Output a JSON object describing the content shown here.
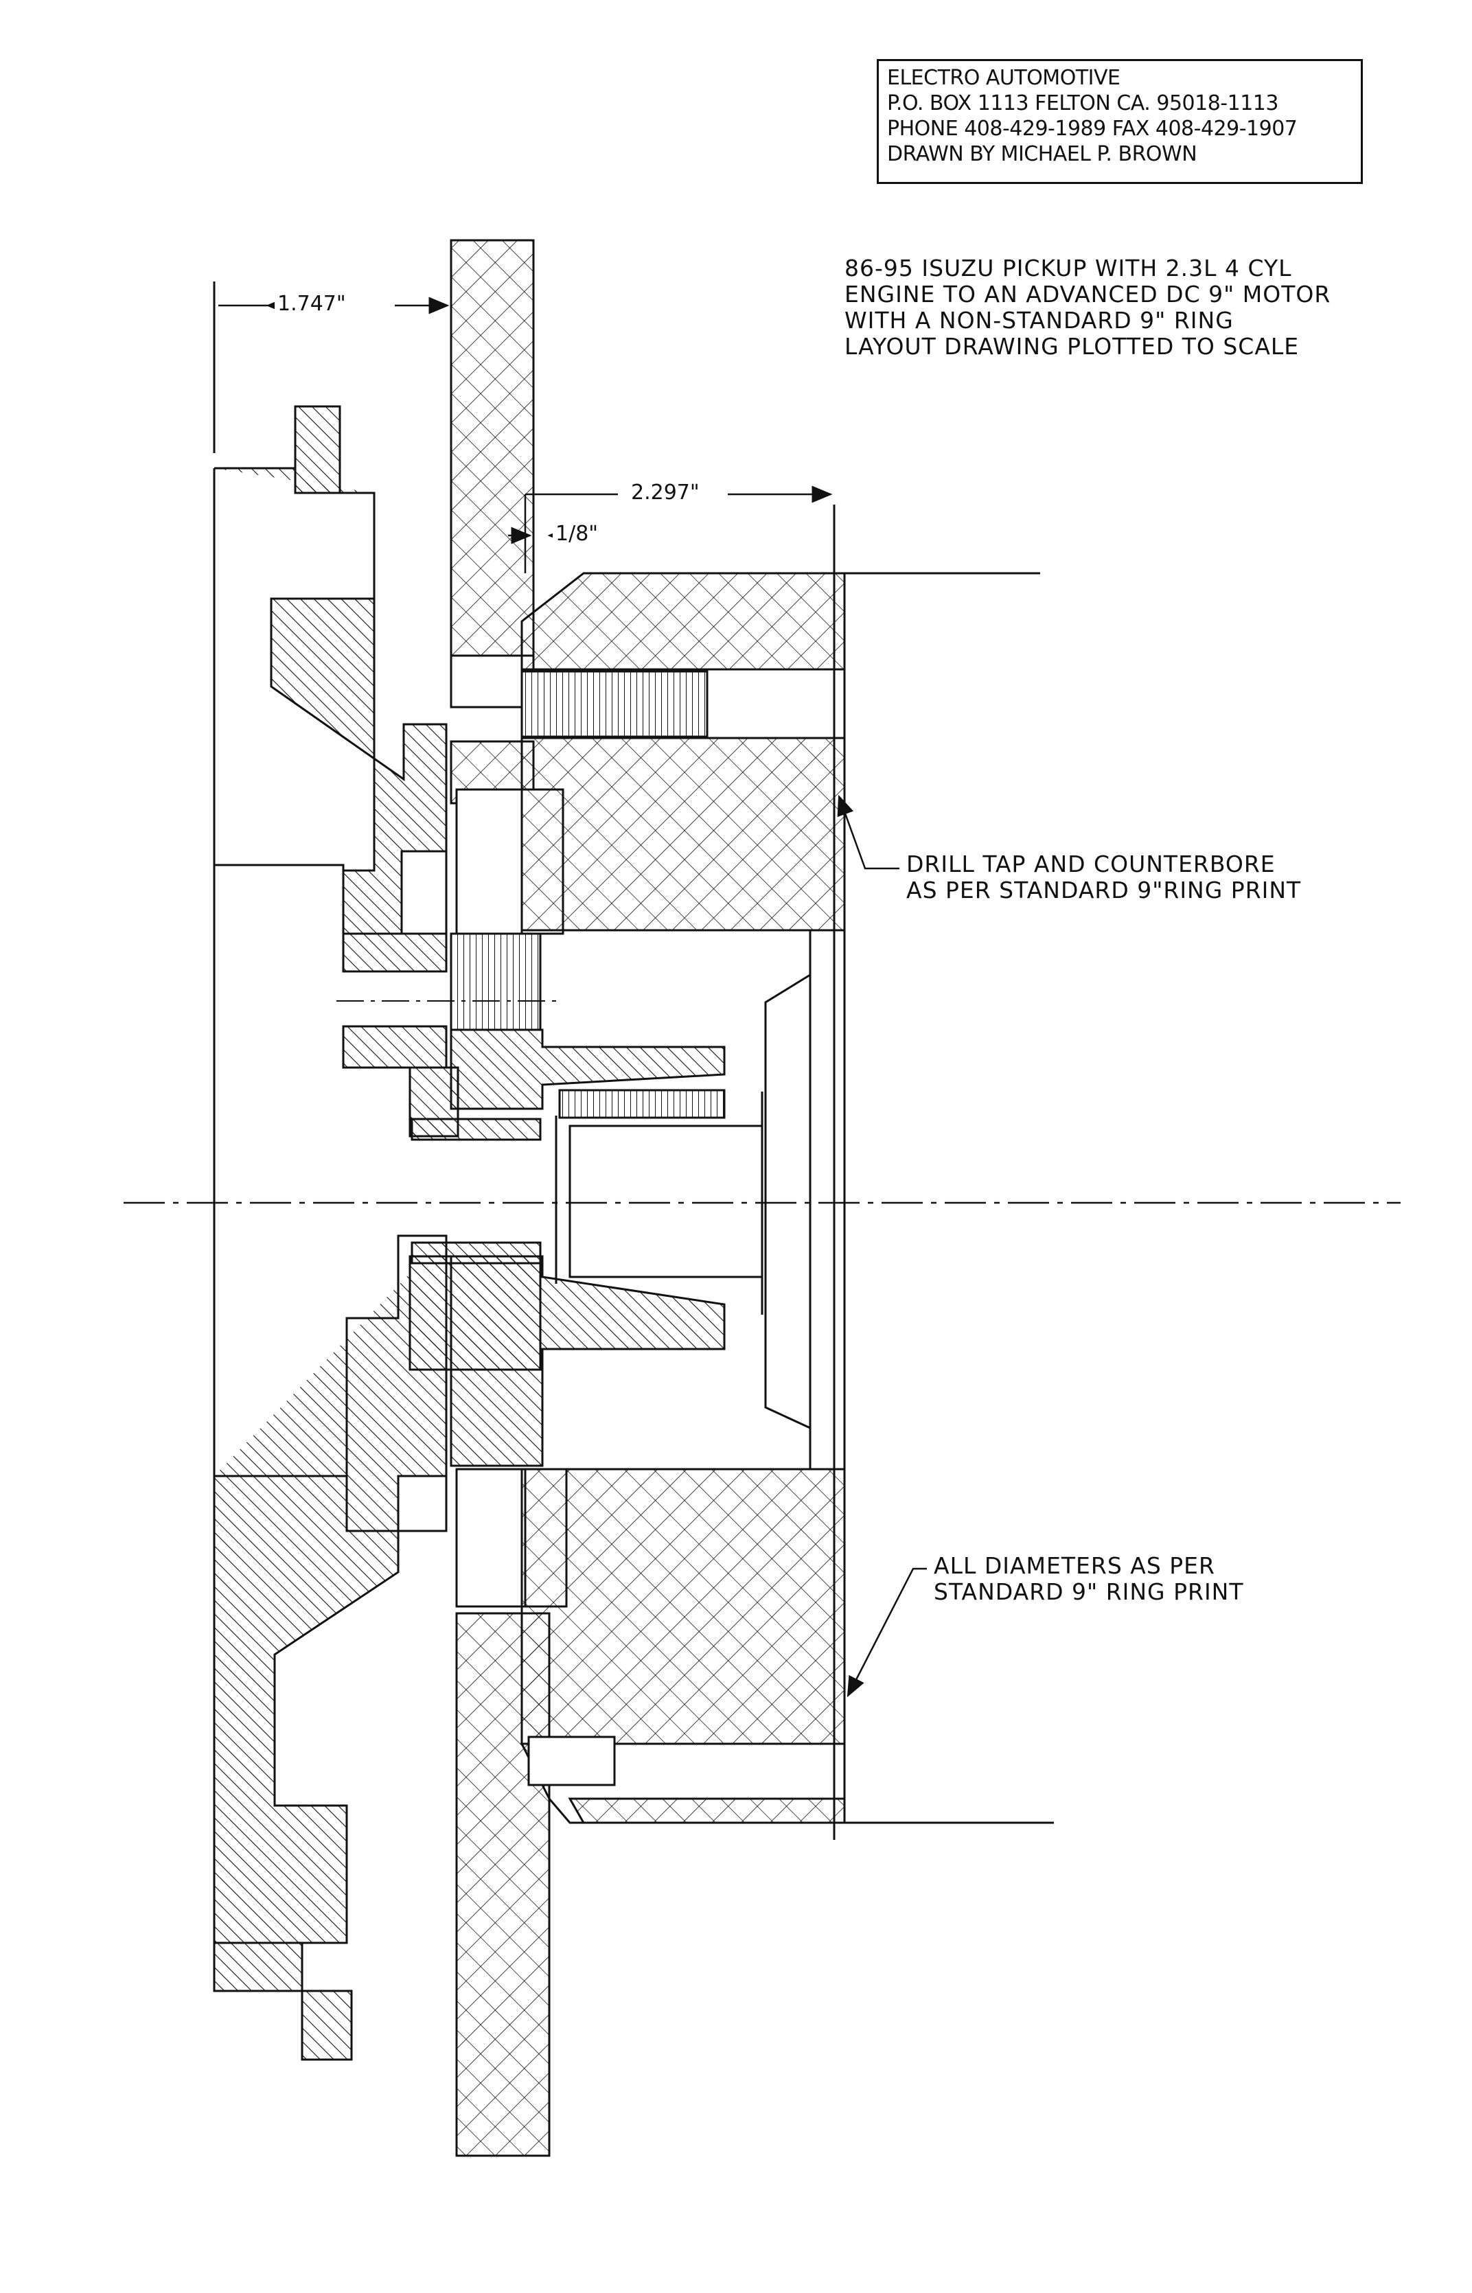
{
  "title_block": {
    "line1": "ELECTRO AUTOMOTIVE",
    "line2": "P.O. BOX 1113 FELTON CA. 95018-1113",
    "line3": "PHONE 408-429-1989 FAX 408-429-1907",
    "line4": "DRAWN BY MICHAEL P. BROWN"
  },
  "description": {
    "line1": "86-95 ISUZU PICKUP WITH 2.3L 4 CYL",
    "line2": "ENGINE TO AN ADVANCED DC 9\" MOTOR",
    "line3": "WITH A NON-STANDARD 9\" RING",
    "line4": "LAYOUT DRAWING PLOTTED TO SCALE"
  },
  "dimensions": {
    "d1": "1.747\"",
    "d2": "2.297\"",
    "d3": "1/8\""
  },
  "notes": {
    "drill_line1": "DRILL TAP AND COUNTERBORE",
    "drill_line2": "AS PER STANDARD 9\"RING PRINT",
    "diam_line1": "ALL DIAMETERS AS PER",
    "diam_line2": "STANDARD 9\" RING PRINT"
  },
  "colors": {
    "ink": "#111111",
    "paper": "#ffffff"
  }
}
